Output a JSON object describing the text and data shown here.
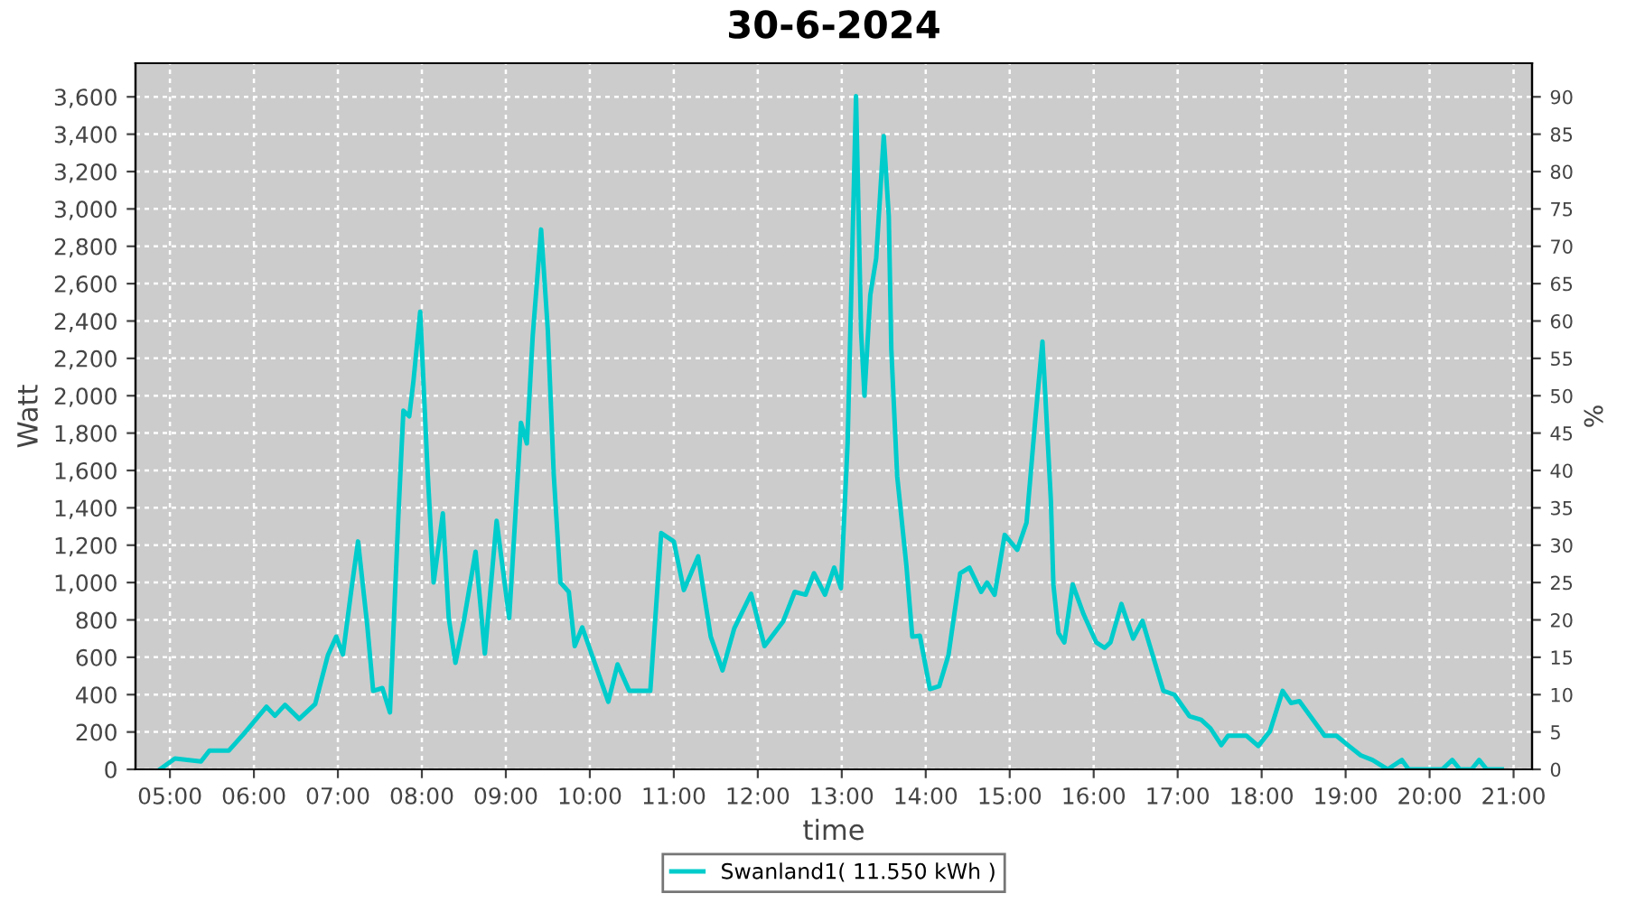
{
  "chart_data": {
    "type": "line",
    "title": "30-6-2024",
    "xlabel": "time",
    "ylabel": "Watt",
    "y2label": "%",
    "legend": "bottom",
    "grid": true,
    "line_style": "solid",
    "marker": "none",
    "xlim": [
      4.59,
      21.22
    ],
    "ylim": [
      0,
      3780
    ],
    "y2lim": [
      0,
      94.5
    ],
    "xticks": [
      {
        "value": 5,
        "label": "05:00"
      },
      {
        "value": 6,
        "label": "06:00"
      },
      {
        "value": 7,
        "label": "07:00"
      },
      {
        "value": 8,
        "label": "08:00"
      },
      {
        "value": 9,
        "label": "09:00"
      },
      {
        "value": 10,
        "label": "10:00"
      },
      {
        "value": 11,
        "label": "11:00"
      },
      {
        "value": 12,
        "label": "12:00"
      },
      {
        "value": 13,
        "label": "13:00"
      },
      {
        "value": 14,
        "label": "14:00"
      },
      {
        "value": 15,
        "label": "15:00"
      },
      {
        "value": 16,
        "label": "16:00"
      },
      {
        "value": 17,
        "label": "17:00"
      },
      {
        "value": 18,
        "label": "18:00"
      },
      {
        "value": 19,
        "label": "19:00"
      },
      {
        "value": 20,
        "label": "20:00"
      },
      {
        "value": 21,
        "label": "21:00"
      }
    ],
    "yticks": [
      0,
      200,
      400,
      600,
      800,
      {
        "value": 1000,
        "label": "1,000"
      },
      {
        "value": 1200,
        "label": "1,200"
      },
      {
        "value": 1400,
        "label": "1,400"
      },
      {
        "value": 1600,
        "label": "1,600"
      },
      {
        "value": 1800,
        "label": "1,800"
      },
      {
        "value": 2000,
        "label": "2,000"
      },
      {
        "value": 2200,
        "label": "2,200"
      },
      {
        "value": 2400,
        "label": "2,400"
      },
      {
        "value": 2600,
        "label": "2,600"
      },
      {
        "value": 2800,
        "label": "2,800"
      },
      {
        "value": 3000,
        "label": "3,000"
      },
      {
        "value": 3200,
        "label": "3,200"
      },
      {
        "value": 3400,
        "label": "3,400"
      },
      {
        "value": 3600,
        "label": "3,600"
      }
    ],
    "y2ticks": [
      0,
      5,
      10,
      15,
      20,
      25,
      30,
      35,
      40,
      45,
      50,
      55,
      60,
      65,
      70,
      75,
      80,
      85,
      90
    ],
    "series": [
      {
        "name": "Swanland1( 11.550 kWh )",
        "color": "#00cccc",
        "x": [
          4.88,
          5.06,
          5.37,
          5.47,
          5.7,
          5.88,
          6.06,
          6.15,
          6.25,
          6.37,
          6.54,
          6.73,
          6.88,
          6.98,
          7.06,
          7.16,
          7.24,
          7.35,
          7.42,
          7.53,
          7.62,
          7.72,
          7.78,
          7.85,
          7.9,
          7.98,
          8.07,
          8.14,
          8.25,
          8.32,
          8.4,
          8.5,
          8.64,
          8.75,
          8.89,
          9.04,
          9.18,
          9.25,
          9.32,
          9.42,
          9.5,
          9.57,
          9.65,
          9.75,
          9.82,
          9.91,
          10.22,
          10.33,
          10.47,
          10.72,
          10.85,
          11.0,
          11.12,
          11.29,
          11.44,
          11.58,
          11.72,
          11.92,
          12.08,
          12.3,
          12.44,
          12.57,
          12.67,
          12.8,
          12.91,
          12.99,
          13.07,
          13.17,
          13.23,
          13.27,
          13.34,
          13.41,
          13.5,
          13.56,
          13.59,
          13.66,
          13.77,
          13.84,
          13.93,
          14.05,
          14.16,
          14.27,
          14.41,
          14.52,
          14.66,
          14.73,
          14.82,
          14.94,
          15.09,
          15.2,
          15.31,
          15.39,
          15.49,
          15.52,
          15.58,
          15.65,
          15.75,
          15.88,
          16.03,
          16.13,
          16.2,
          16.33,
          16.47,
          16.58,
          16.71,
          16.83,
          16.96,
          17.14,
          17.28,
          17.39,
          17.52,
          17.6,
          17.82,
          17.96,
          18.1,
          18.25,
          18.35,
          18.45,
          18.75,
          18.89,
          19.04,
          19.18,
          19.32,
          19.5,
          19.67,
          19.75,
          20.15,
          20.27,
          20.36,
          20.5,
          20.59,
          20.68,
          20.86
        ],
        "values": [
          0,
          58,
          42,
          100,
          100,
          190,
          287,
          335,
          287,
          345,
          270,
          350,
          610,
          710,
          615,
          960,
          1220,
          770,
          420,
          435,
          305,
          1355,
          1920,
          1890,
          2080,
          2450,
          1580,
          1000,
          1370,
          810,
          570,
          795,
          1165,
          620,
          1330,
          810,
          1855,
          1745,
          2320,
          2890,
          2350,
          1580,
          1000,
          950,
          660,
          760,
          362,
          562,
          420,
          420,
          1265,
          1220,
          960,
          1140,
          710,
          530,
          755,
          940,
          660,
          790,
          950,
          935,
          1050,
          935,
          1080,
          970,
          1750,
          3603,
          2345,
          2000,
          2540,
          2735,
          3390,
          2960,
          2250,
          1570,
          1090,
          710,
          715,
          430,
          445,
          610,
          1050,
          1080,
          950,
          1000,
          935,
          1255,
          1175,
          1320,
          1900,
          2290,
          1442,
          990,
          730,
          680,
          990,
          830,
          680,
          650,
          680,
          885,
          700,
          795,
          600,
          420,
          400,
          285,
          265,
          220,
          130,
          180,
          180,
          125,
          205,
          420,
          355,
          365,
          180,
          180,
          125,
          75,
          50,
          0,
          50,
          0,
          0,
          50,
          0,
          0,
          50,
          0,
          0
        ]
      }
    ]
  }
}
